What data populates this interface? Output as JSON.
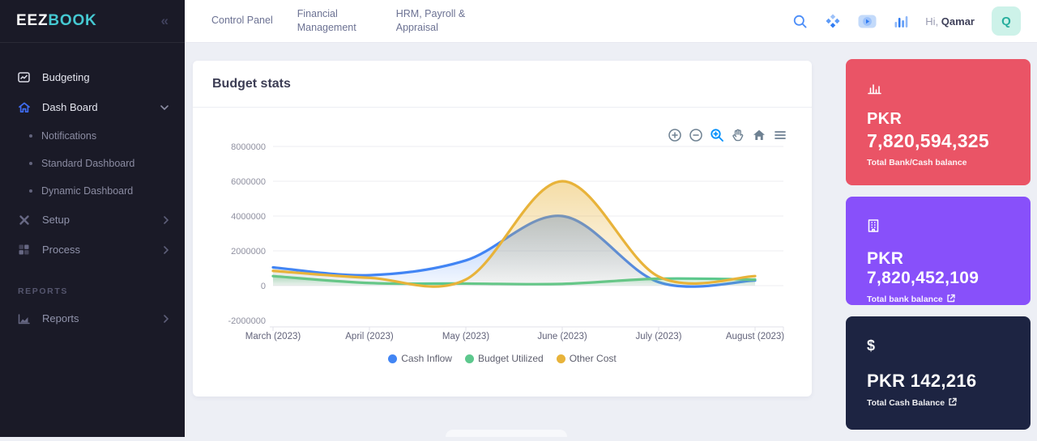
{
  "sidebar": {
    "brand": {
      "primary": "EEZ",
      "secondary": "BOOK",
      "accent_color": "#45c8d1"
    },
    "items": {
      "budgeting": "Budgeting",
      "dashboard": "Dash Board",
      "notifications": "Notifications",
      "standard_dashboard": "Standard Dashboard",
      "dynamic_dashboard": "Dynamic Dashboard",
      "setup": "Setup",
      "process": "Process",
      "reports": "Reports"
    },
    "section_label": "REPORTS"
  },
  "topnav": {
    "links": [
      "Control Panel",
      "Financial Management",
      "HRM, Payroll & Appraisal"
    ],
    "icons": [
      "search-icon",
      "apps-diamond-icon",
      "video-tutorial-icon",
      "stats-bars-icon"
    ],
    "greeting_prefix": "Hi, ",
    "user_name": "Qamar",
    "avatar_letter": "Q"
  },
  "chart_card": {
    "title": "Budget stats",
    "toolbar": [
      "zoom-in",
      "zoom-out",
      "selection-zoom",
      "pan",
      "reset-home",
      "menu"
    ]
  },
  "chart_data": {
    "type": "area",
    "title": "Budget stats",
    "curve": "smooth",
    "categories": [
      "March (2023)",
      "April (2023)",
      "May (2023)",
      "June (2023)",
      "July (2023)",
      "August (2023)"
    ],
    "series": [
      {
        "name": "Cash Inflow",
        "color": "#4285f4",
        "values": [
          1050000,
          600000,
          1450000,
          4000000,
          200000,
          300000
        ]
      },
      {
        "name": "Budget Utilized",
        "color": "#5dc88d",
        "values": [
          550000,
          150000,
          120000,
          100000,
          400000,
          350000
        ]
      },
      {
        "name": "Other Cost",
        "color": "#e8b33a",
        "values": [
          850000,
          450000,
          350000,
          6000000,
          520000,
          550000
        ]
      }
    ],
    "ylim": [
      -2000000,
      8000000
    ],
    "yticks": [
      8000000,
      6000000,
      4000000,
      2000000,
      0,
      -2000000
    ],
    "grid": true,
    "legend_position": "bottom"
  },
  "stats": {
    "cards": [
      {
        "icon": "bar-chart-icon",
        "line1": "PKR",
        "line2": "7,820,594,325",
        "label": "Total Bank/Cash balance",
        "bg": "#ea5466"
      },
      {
        "icon": "bank-building-icon",
        "line1": "PKR 7,820,452,109",
        "label": "Total bank balance",
        "bg": "#8850fa",
        "has_external_link": true
      },
      {
        "icon": "dollar-icon",
        "icon_glyph": "$",
        "line1": "PKR 142,216",
        "label": "Total Cash Balance",
        "bg": "#1d2442",
        "has_external_link": true
      }
    ]
  }
}
